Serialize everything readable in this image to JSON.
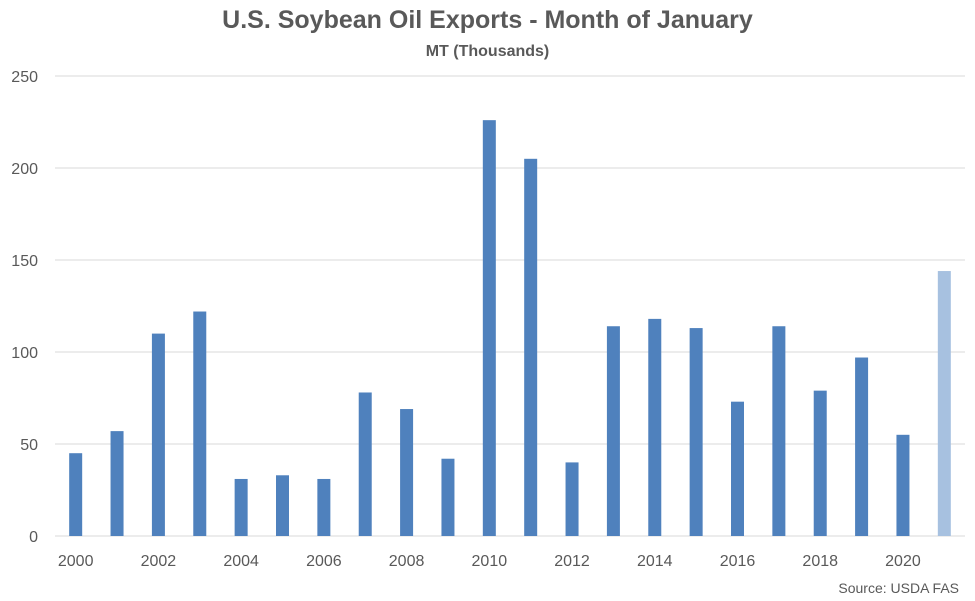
{
  "chart_data": {
    "type": "bar",
    "title": "U.S. Soybean Oil Exports - Month of January",
    "subtitle": "MT (Thousands)",
    "source": "Source: USDA FAS",
    "categories": [
      "2000",
      "2001",
      "2002",
      "2003",
      "2004",
      "2005",
      "2006",
      "2007",
      "2008",
      "2009",
      "2010",
      "2011",
      "2012",
      "2013",
      "2014",
      "2015",
      "2016",
      "2017",
      "2018",
      "2019",
      "2020",
      "2021"
    ],
    "x_tick_labels": [
      "2000",
      "2002",
      "2004",
      "2006",
      "2008",
      "2010",
      "2012",
      "2014",
      "2016",
      "2018",
      "2020"
    ],
    "y_ticks": [
      0,
      50,
      100,
      150,
      200,
      250
    ],
    "ylim": [
      0,
      250
    ],
    "values": [
      45,
      57,
      110,
      122,
      31,
      33,
      31,
      78,
      69,
      42,
      226,
      205,
      40,
      114,
      118,
      113,
      73,
      114,
      79,
      97,
      55,
      144
    ],
    "highlight_index": 21,
    "grid": true,
    "colors": {
      "bar": "#4F81BD",
      "highlight": "#A7C1E0",
      "grid": "#D9D9D9",
      "text": "#595959"
    }
  }
}
